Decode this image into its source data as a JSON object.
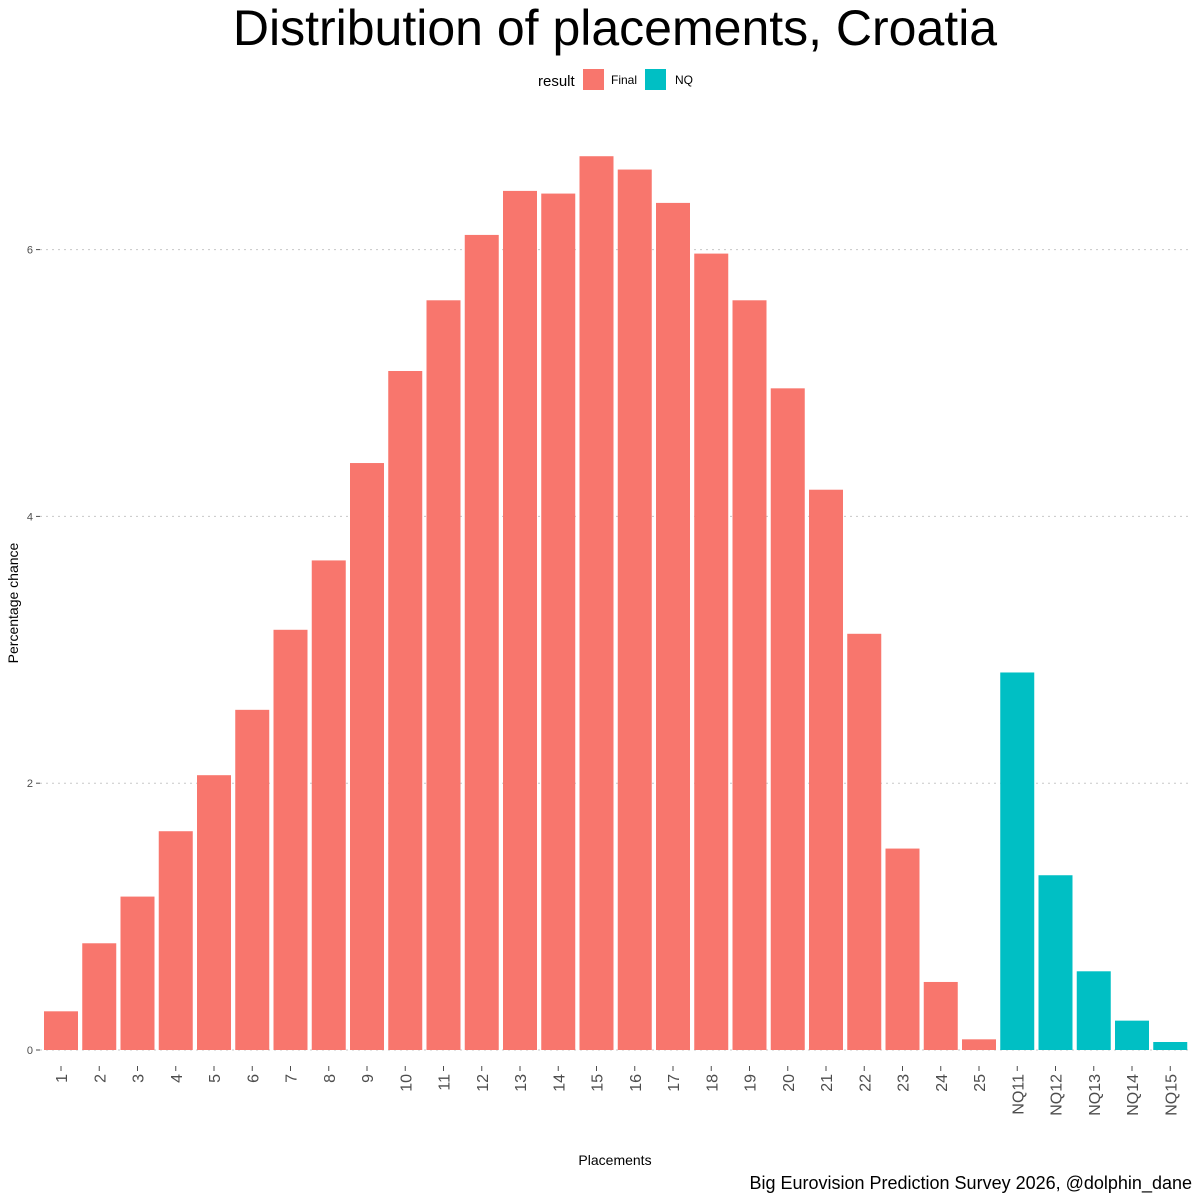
{
  "chart_data": {
    "type": "bar",
    "title": "Distribution of placements, Croatia",
    "xlabel": "Placements",
    "ylabel": "Percentage chance",
    "caption": "Big Eurovision Prediction Survey 2026, @dolphin_dane",
    "legend": {
      "title": "result",
      "position": "top",
      "entries": [
        {
          "name": "Final",
          "color": "#F8766D"
        },
        {
          "name": "NQ",
          "color": "#00BFC4"
        }
      ]
    },
    "yticks": [
      "0",
      "2",
      "4",
      "6"
    ],
    "ylim": [
      0,
      6.7
    ],
    "grid": "horizontal dotted",
    "categories": [
      "1",
      "2",
      "3",
      "4",
      "5",
      "6",
      "7",
      "8",
      "9",
      "10",
      "11",
      "12",
      "13",
      "14",
      "15",
      "16",
      "17",
      "18",
      "19",
      "20",
      "21",
      "22",
      "23",
      "24",
      "25",
      "NQ11",
      "NQ12",
      "NQ13",
      "NQ14",
      "NQ15"
    ],
    "values": [
      0.29,
      0.8,
      1.15,
      1.64,
      2.06,
      2.55,
      3.15,
      3.67,
      4.4,
      5.09,
      5.62,
      6.11,
      6.44,
      6.42,
      6.7,
      6.6,
      6.35,
      5.97,
      5.62,
      4.96,
      4.2,
      3.12,
      1.51,
      0.51,
      0.08,
      2.83,
      1.31,
      0.59,
      0.22,
      0.06
    ],
    "groups": [
      "Final",
      "Final",
      "Final",
      "Final",
      "Final",
      "Final",
      "Final",
      "Final",
      "Final",
      "Final",
      "Final",
      "Final",
      "Final",
      "Final",
      "Final",
      "Final",
      "Final",
      "Final",
      "Final",
      "Final",
      "Final",
      "Final",
      "Final",
      "Final",
      "Final",
      "NQ",
      "NQ",
      "NQ",
      "NQ",
      "NQ"
    ]
  }
}
